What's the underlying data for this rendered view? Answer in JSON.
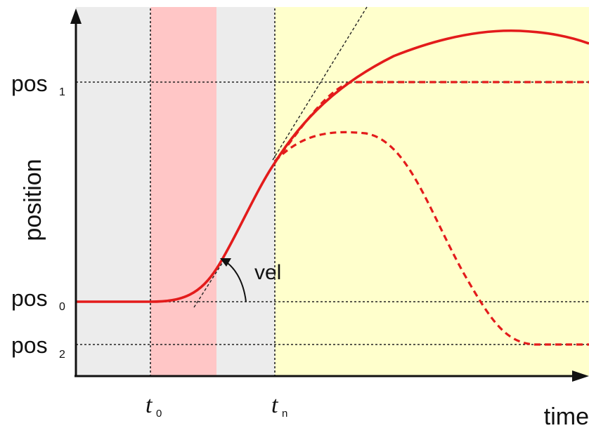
{
  "axes": {
    "ylabel": "position",
    "xlabel": "time"
  },
  "y_labels": {
    "pos1": {
      "main": "pos",
      "sub": "1"
    },
    "pos0": {
      "main": "pos",
      "sub": "0"
    },
    "pos2": {
      "main": "pos",
      "sub": "2"
    }
  },
  "x_labels": {
    "t0": {
      "main": "t",
      "sub": "0"
    },
    "tn": {
      "main": "t",
      "sub": "n"
    }
  },
  "annotation": {
    "vel": "vel"
  },
  "colors": {
    "background_before": "#ececec",
    "highlight_band": "#ffc6c6",
    "background_after": "#ffffcc",
    "curve": "#e31b1b",
    "axis": "#111111"
  }
}
